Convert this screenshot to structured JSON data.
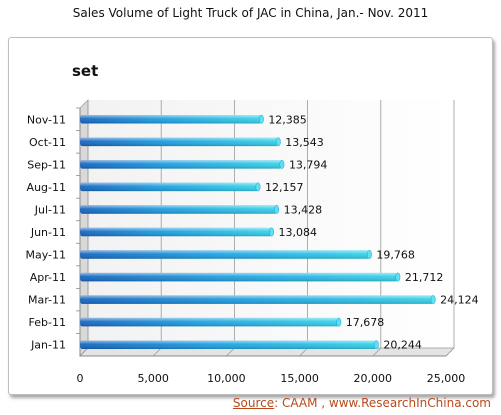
{
  "title": "Sales Volume of Light Truck of JAC in China, Jan.- Nov. 2011",
  "unit_label": "set",
  "source": {
    "label": "Source",
    "text": ": CAAM , www.ResearchInChina.com"
  },
  "colors": {
    "bar_dark": "#1565c0",
    "bar_mid": "#1e9fe0",
    "bar_light": "#35d1e8",
    "source": "#b84a1e"
  },
  "chart_data": {
    "type": "bar",
    "orientation": "horizontal",
    "title": "Sales Volume of Light Truck of JAC in China, Jan.- Nov. 2011",
    "ylabel": "set",
    "categories": [
      "Nov-11",
      "Oct-11",
      "Sep-11",
      "Aug-11",
      "Jul-11",
      "Jun-11",
      "May-11",
      "Apr-11",
      "Mar-11",
      "Feb-11",
      "Jan-11"
    ],
    "values": [
      12385,
      13543,
      13794,
      12157,
      13428,
      13084,
      19768,
      21712,
      24124,
      17678,
      20244
    ],
    "data_labels": [
      "12,385",
      "13,543",
      "13,794",
      "12,157",
      "13,428",
      "13,084",
      "19,768",
      "21,712",
      "24,124",
      "17,678",
      "20,244"
    ],
    "xlim": [
      0,
      25000
    ],
    "x_ticks": [
      0,
      5000,
      10000,
      15000,
      20000,
      25000
    ],
    "x_tick_labels": [
      "0",
      "5,000",
      "10,000",
      "15,000",
      "20,000",
      "25,000"
    ],
    "grid": true,
    "legend": false
  }
}
